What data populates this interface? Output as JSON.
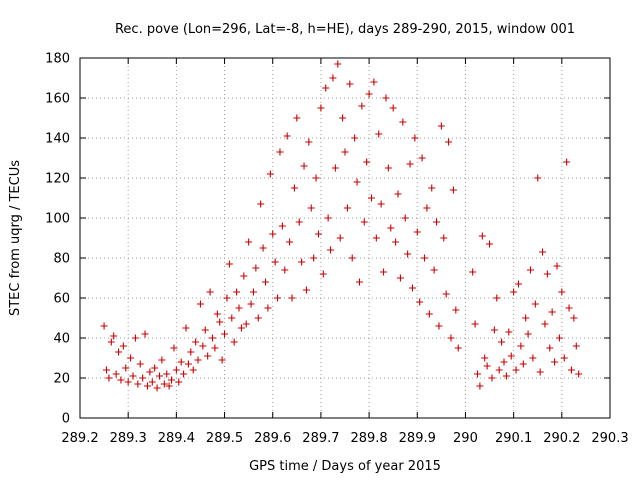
{
  "chart_data": {
    "type": "scatter",
    "title": "Rec. pove (Lon=296, Lat=-8, h=HE), days 289-290, 2015, window 001",
    "xlabel": "GPS time / Days of year 2015",
    "ylabel": "STEC from uqrg / TECUs",
    "xlim": [
      289.2,
      290.3
    ],
    "ylim": [
      0,
      180
    ],
    "xticks": [
      "289.2",
      "289.3",
      "289.4",
      "289.5",
      "289.6",
      "289.7",
      "289.8",
      "289.9",
      "290",
      "290.1",
      "290.2",
      "290.3"
    ],
    "yticks": [
      "0",
      "20",
      "40",
      "60",
      "80",
      "100",
      "120",
      "140",
      "160",
      "180"
    ],
    "grid": true,
    "legend": "none",
    "marker": "+",
    "color": "#cc0000",
    "series": [
      {
        "points": [
          [
            289.25,
            46
          ],
          [
            289.255,
            24
          ],
          [
            289.26,
            20
          ],
          [
            289.265,
            38
          ],
          [
            289.27,
            41
          ],
          [
            289.275,
            22
          ],
          [
            289.28,
            33
          ],
          [
            289.285,
            19
          ],
          [
            289.29,
            36
          ],
          [
            289.295,
            25
          ],
          [
            289.3,
            18
          ],
          [
            289.305,
            30
          ],
          [
            289.31,
            21
          ],
          [
            289.315,
            40
          ],
          [
            289.32,
            17
          ],
          [
            289.325,
            27
          ],
          [
            289.33,
            20
          ],
          [
            289.335,
            42
          ],
          [
            289.34,
            16
          ],
          [
            289.345,
            23
          ],
          [
            289.35,
            18
          ],
          [
            289.355,
            25
          ],
          [
            289.36,
            15
          ],
          [
            289.365,
            21
          ],
          [
            289.37,
            29
          ],
          [
            289.375,
            17
          ],
          [
            289.38,
            22
          ],
          [
            289.385,
            16
          ],
          [
            289.39,
            19
          ],
          [
            289.395,
            35
          ],
          [
            289.4,
            24
          ],
          [
            289.405,
            18
          ],
          [
            289.41,
            28
          ],
          [
            289.415,
            22
          ],
          [
            289.42,
            45
          ],
          [
            289.425,
            27
          ],
          [
            289.43,
            33
          ],
          [
            289.435,
            24
          ],
          [
            289.44,
            38
          ],
          [
            289.445,
            29
          ],
          [
            289.45,
            57
          ],
          [
            289.455,
            36
          ],
          [
            289.46,
            44
          ],
          [
            289.465,
            31
          ],
          [
            289.47,
            63
          ],
          [
            289.475,
            40
          ],
          [
            289.48,
            35
          ],
          [
            289.485,
            52
          ],
          [
            289.49,
            48
          ],
          [
            289.495,
            29
          ],
          [
            289.5,
            42
          ],
          [
            289.505,
            60
          ],
          [
            289.51,
            77
          ],
          [
            289.515,
            50
          ],
          [
            289.52,
            38
          ],
          [
            289.525,
            63
          ],
          [
            289.53,
            55
          ],
          [
            289.535,
            45
          ],
          [
            289.54,
            71
          ],
          [
            289.545,
            47
          ],
          [
            289.55,
            88
          ],
          [
            289.555,
            57
          ],
          [
            289.56,
            63
          ],
          [
            289.565,
            75
          ],
          [
            289.57,
            50
          ],
          [
            289.575,
            107
          ],
          [
            289.58,
            85
          ],
          [
            289.585,
            68
          ],
          [
            289.59,
            55
          ],
          [
            289.595,
            122
          ],
          [
            289.6,
            92
          ],
          [
            289.605,
            78
          ],
          [
            289.61,
            60
          ],
          [
            289.615,
            133
          ],
          [
            289.62,
            96
          ],
          [
            289.625,
            74
          ],
          [
            289.63,
            141
          ],
          [
            289.635,
            88
          ],
          [
            289.64,
            60
          ],
          [
            289.645,
            115
          ],
          [
            289.65,
            150
          ],
          [
            289.655,
            98
          ],
          [
            289.66,
            78
          ],
          [
            289.665,
            126
          ],
          [
            289.67,
            64
          ],
          [
            289.675,
            138
          ],
          [
            289.68,
            105
          ],
          [
            289.685,
            80
          ],
          [
            289.69,
            120
          ],
          [
            289.695,
            92
          ],
          [
            289.7,
            155
          ],
          [
            289.705,
            72
          ],
          [
            289.71,
            165
          ],
          [
            289.715,
            100
          ],
          [
            289.72,
            84
          ],
          [
            289.725,
            170
          ],
          [
            289.73,
            125
          ],
          [
            289.735,
            177
          ],
          [
            289.74,
            90
          ],
          [
            289.745,
            150
          ],
          [
            289.75,
            133
          ],
          [
            289.755,
            105
          ],
          [
            289.76,
            167
          ],
          [
            289.765,
            80
          ],
          [
            289.77,
            140
          ],
          [
            289.775,
            118
          ],
          [
            289.78,
            68
          ],
          [
            289.785,
            156
          ],
          [
            289.79,
            98
          ],
          [
            289.795,
            128
          ],
          [
            289.8,
            162
          ],
          [
            289.805,
            110
          ],
          [
            289.81,
            168
          ],
          [
            289.815,
            90
          ],
          [
            289.82,
            142
          ],
          [
            289.825,
            107
          ],
          [
            289.83,
            73
          ],
          [
            289.835,
            160
          ],
          [
            289.84,
            125
          ],
          [
            289.845,
            95
          ],
          [
            289.85,
            155
          ],
          [
            289.855,
            88
          ],
          [
            289.86,
            112
          ],
          [
            289.865,
            70
          ],
          [
            289.87,
            148
          ],
          [
            289.875,
            100
          ],
          [
            289.88,
            82
          ],
          [
            289.885,
            127
          ],
          [
            289.89,
            65
          ],
          [
            289.895,
            140
          ],
          [
            289.9,
            93
          ],
          [
            289.905,
            58
          ],
          [
            289.91,
            130
          ],
          [
            289.915,
            80
          ],
          [
            289.92,
            105
          ],
          [
            289.925,
            52
          ],
          [
            289.93,
            115
          ],
          [
            289.935,
            74
          ],
          [
            289.94,
            98
          ],
          [
            289.945,
            46
          ],
          [
            289.95,
            146
          ],
          [
            289.955,
            90
          ],
          [
            289.96,
            62
          ],
          [
            289.965,
            138
          ],
          [
            289.97,
            40
          ],
          [
            289.975,
            114
          ],
          [
            289.98,
            54
          ],
          [
            289.985,
            35
          ],
          [
            290.015,
            73
          ],
          [
            290.02,
            47
          ],
          [
            290.025,
            22
          ],
          [
            290.03,
            16
          ],
          [
            290.035,
            91
          ],
          [
            290.04,
            30
          ],
          [
            290.045,
            26
          ],
          [
            290.05,
            87
          ],
          [
            290.055,
            20
          ],
          [
            290.06,
            44
          ],
          [
            290.065,
            60
          ],
          [
            290.07,
            24
          ],
          [
            290.075,
            38
          ],
          [
            290.08,
            28
          ],
          [
            290.085,
            21
          ],
          [
            290.09,
            43
          ],
          [
            290.095,
            31
          ],
          [
            290.1,
            63
          ],
          [
            290.105,
            24
          ],
          [
            290.11,
            67
          ],
          [
            290.115,
            36
          ],
          [
            290.12,
            27
          ],
          [
            290.125,
            50
          ],
          [
            290.13,
            42
          ],
          [
            290.135,
            74
          ],
          [
            290.14,
            30
          ],
          [
            290.145,
            57
          ],
          [
            290.15,
            120
          ],
          [
            290.155,
            23
          ],
          [
            290.16,
            83
          ],
          [
            290.165,
            47
          ],
          [
            290.17,
            72
          ],
          [
            290.175,
            35
          ],
          [
            290.18,
            53
          ],
          [
            290.185,
            28
          ],
          [
            290.19,
            76
          ],
          [
            290.195,
            40
          ],
          [
            290.2,
            63
          ],
          [
            290.205,
            30
          ],
          [
            290.21,
            128
          ],
          [
            290.215,
            55
          ],
          [
            290.22,
            24
          ],
          [
            290.225,
            50
          ],
          [
            290.23,
            36
          ],
          [
            290.235,
            22
          ]
        ]
      }
    ]
  }
}
